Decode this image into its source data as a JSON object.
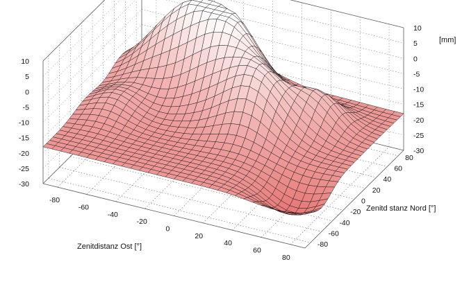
{
  "chart_data": {
    "type": "surface3d",
    "title": "",
    "xlabel": "Zenitdistanz Ost [°]",
    "ylabel": "Zenitd stanz Nord [°]",
    "zlabel": "[mm]",
    "x_ticks": [
      "-80",
      "-60",
      "-40",
      "-20",
      "0",
      "20",
      "40",
      "60",
      "80"
    ],
    "y_ticks": [
      "-80",
      "-60",
      "-40",
      "-20",
      "0",
      "20",
      "40",
      "60",
      "80"
    ],
    "z_ticks": [
      "10",
      "5",
      "0",
      "-5",
      "-10",
      "-15",
      "-20",
      "-25",
      "-30"
    ],
    "xlim": [
      -90,
      90
    ],
    "ylim": [
      -90,
      90
    ],
    "zlim": [
      -30,
      10
    ],
    "grid": true,
    "surface_colors": {
      "low": "#e46a68",
      "high": "#ffffff",
      "mesh": "#111111"
    },
    "surface_description_points": [
      {
        "x": -60,
        "y": 40,
        "z": 8
      },
      {
        "x": -20,
        "y": 60,
        "z": 6
      },
      {
        "x": 20,
        "y": 20,
        "z": 2
      },
      {
        "x": 60,
        "y": -20,
        "z": -22
      },
      {
        "x": -80,
        "y": -60,
        "z": -12
      }
    ]
  }
}
